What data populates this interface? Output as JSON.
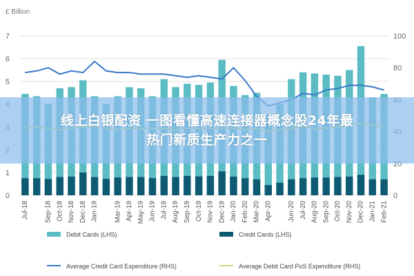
{
  "chart_data": {
    "type": "bar",
    "unit_label": "£ Billion",
    "categories": [
      "Jul-18",
      "Aug-18",
      "Sep-18",
      "Oct-18",
      "Nov-18",
      "Dec-18",
      "Jan-19",
      "Feb-19",
      "Mar-19",
      "Apr-19",
      "May-19",
      "Jun-19",
      "Jul-19",
      "Aug-19",
      "Sep-19",
      "Oct-19",
      "Nov-19",
      "Dec-19",
      "Jan-20",
      "Feb-20",
      "Mar-20",
      "Apr-20",
      "May-20",
      "Jun-20",
      "Jul-20",
      "Aug-20",
      "Sep-20",
      "Oct-20",
      "Nov-20",
      "Dec-20",
      "Jan-21",
      "Feb-21"
    ],
    "x_tick_labels": [
      "Jul-18",
      "Sep-18",
      "Oct-18",
      "Nov-18",
      "Dec-18",
      "Jan-19",
      "Mar-19",
      "Apr-19",
      "May-19",
      "Jun-19",
      "Jul-19",
      "Aug-19",
      "Sep-19",
      "Oct-19",
      "Nov-19",
      "Dec-19",
      "Jan-20",
      "Feb-20",
      "Mar-20",
      "Apr-20",
      "Jun-20",
      "Jul-20",
      "Aug-20",
      "Sep-20",
      "Oct-20",
      "Nov-20",
      "Dec-20",
      "Jan-21",
      "Feb-21"
    ],
    "left_axis": {
      "min": 0,
      "max": 7,
      "ticks": [
        0,
        1,
        2,
        3,
        4,
        5,
        6,
        7
      ]
    },
    "right_axis": {
      "min": 0,
      "max": 100,
      "ticks": [
        0,
        20,
        40,
        60,
        80,
        100
      ]
    },
    "series": [
      {
        "name": "Debit Cards (LHS)",
        "type": "bar",
        "axis": "left",
        "color": "#5bbcc4",
        "values": [
          4.45,
          4.35,
          4.0,
          4.7,
          4.75,
          5.05,
          4.35,
          4.0,
          4.35,
          4.75,
          4.7,
          4.35,
          5.1,
          4.75,
          4.9,
          4.85,
          4.95,
          5.95,
          4.8,
          4.4,
          4.5,
          3.55,
          4.0,
          5.1,
          5.4,
          5.35,
          5.3,
          5.25,
          5.5,
          6.55,
          4.3,
          4.45
        ]
      },
      {
        "name": "Credit Cards (LHS)",
        "type": "bar",
        "axis": "left",
        "color": "#0e5a73",
        "values": [
          0.75,
          0.75,
          0.72,
          0.8,
          0.82,
          1.0,
          0.8,
          0.72,
          0.78,
          0.8,
          0.8,
          0.75,
          0.85,
          0.8,
          0.85,
          0.83,
          0.85,
          1.05,
          0.82,
          0.75,
          0.7,
          0.45,
          0.55,
          0.7,
          0.75,
          0.78,
          0.78,
          0.8,
          0.82,
          0.9,
          0.7,
          0.7
        ]
      },
      {
        "name": "Average Credit Card Expenditure (RHS)",
        "type": "line",
        "axis": "right",
        "color": "#3a78c8",
        "values": [
          77,
          78,
          80,
          76,
          78,
          77,
          84,
          78,
          77,
          77,
          76,
          76,
          76,
          75,
          74,
          75,
          74,
          73,
          80,
          72,
          62,
          56,
          58,
          60,
          64,
          63,
          66,
          67,
          69,
          69,
          68,
          66
        ]
      },
      {
        "name": "Average Debit Card PoS Expenditure (RHS)",
        "type": "line",
        "axis": "right",
        "color": "#c6dc86",
        "values": [
          42,
          43,
          42,
          41,
          42,
          43,
          43,
          42,
          41,
          42,
          42,
          42,
          42,
          41,
          42,
          42,
          42,
          42,
          42,
          41,
          42,
          40,
          41,
          42,
          43,
          42,
          42,
          43,
          44,
          45,
          44,
          43
        ]
      }
    ]
  },
  "banner": {
    "line1": "线上白银配资 一图看懂高速连接器概念股24年最",
    "line2": "热门新质生产力之一"
  }
}
